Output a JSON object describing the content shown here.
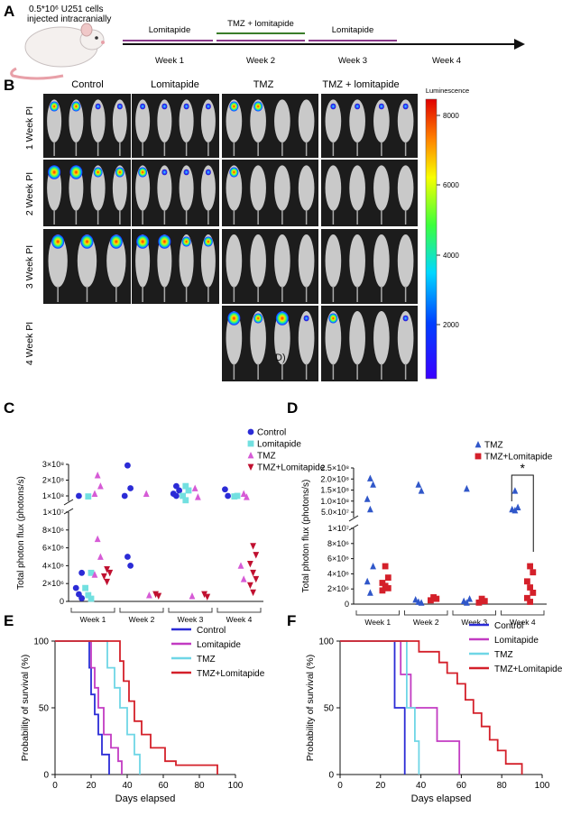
{
  "panel_letters": {
    "a": "A",
    "b": "B",
    "c": "C",
    "d": "D",
    "e": "E",
    "f": "F"
  },
  "panel_a": {
    "mouse_caption_line1": "0.5*10⁶ U251 cells",
    "mouse_caption_line2": "injected intracranially",
    "segment_labels": [
      "Lomitapide",
      "TMZ + lomitapide",
      "Lomitapide"
    ],
    "week_labels": [
      "Week 1",
      "Week 2",
      "Week 3",
      "Week 4"
    ],
    "colors": {
      "lomitapide_bar": "#8b3a8b",
      "tmz_lomitapide_bar": "#3a7d2a"
    }
  },
  "panel_b": {
    "column_titles": [
      "Control",
      "Lomitapide",
      "TMZ",
      "TMZ + lomitapide"
    ],
    "row_labels": [
      "1 Week PI",
      "2 Week PI",
      "3 Week PI",
      "4 Week PI"
    ],
    "colorbar_title": "Luminescence",
    "colorbar_ticks": [
      "8000",
      "6000",
      "4000",
      "2000"
    ],
    "image_overlay_text": "D)"
  },
  "chart_data": [
    {
      "panel": "C",
      "type": "scatter",
      "ylabel": "Total photon flux (photons/s)",
      "categories": [
        "Week 1",
        "Week 2",
        "Week 3",
        "Week 4"
      ],
      "upper_axis": {
        "ticks": [
          "3×10⁸",
          "2×10⁸",
          "1×10⁸"
        ],
        "ylim": [
          10000000,
          350000000
        ]
      },
      "lower_axis": {
        "ticks": [
          "1×10⁷",
          "8×10⁶",
          "6×10⁶",
          "4×10⁶",
          "2×10⁶",
          "0"
        ],
        "ylim": [
          0,
          10000000
        ]
      },
      "series": [
        {
          "name": "Control",
          "marker": "circle",
          "color": "#2b2bd6",
          "points": [
            [
              1,
              60000000
            ],
            [
              1,
              3200000
            ],
            [
              1,
              1500000
            ],
            [
              1,
              800000
            ],
            [
              1,
              350000
            ],
            [
              2,
              340000000
            ],
            [
              2,
              130000000
            ],
            [
              2,
              60000000
            ],
            [
              2,
              5000000
            ],
            [
              2,
              4000000
            ],
            [
              3,
              150000000
            ],
            [
              3,
              110000000
            ],
            [
              3,
              80000000
            ],
            [
              3,
              60000000
            ],
            [
              4,
              120000000
            ],
            [
              4,
              60000000
            ]
          ]
        },
        {
          "name": "Lomitapide",
          "marker": "square",
          "color": "#72e0e0",
          "points": [
            [
              1,
              55000000
            ],
            [
              1,
              3200000
            ],
            [
              1,
              1500000
            ],
            [
              1,
              700000
            ],
            [
              1,
              300000
            ],
            [
              3,
              150000000
            ],
            [
              3,
              110000000
            ],
            [
              3,
              60000000
            ],
            [
              3,
              20000000
            ],
            [
              4,
              55000000
            ],
            [
              4,
              60000000
            ]
          ]
        },
        {
          "name": "TMZ",
          "marker": "triangle",
          "color": "#d65bd6",
          "points": [
            [
              1,
              250000000
            ],
            [
              1,
              150000000
            ],
            [
              1,
              80000000
            ],
            [
              1,
              7000000
            ],
            [
              1,
              5000000
            ],
            [
              1,
              3000000
            ],
            [
              2,
              80000000
            ],
            [
              2,
              700000
            ],
            [
              3,
              130000000
            ],
            [
              3,
              50000000
            ],
            [
              3,
              600000
            ],
            [
              4,
              80000000
            ],
            [
              4,
              50000000
            ],
            [
              4,
              4000000
            ],
            [
              4,
              2500000
            ]
          ]
        },
        {
          "name": "TMZ+Lomitapide",
          "marker": "triangle-down",
          "color": "#c01030",
          "points": [
            [
              1,
              3600000
            ],
            [
              1,
              3200000
            ],
            [
              1,
              2800000
            ],
            [
              1,
              2200000
            ],
            [
              2,
              800000
            ],
            [
              2,
              600000
            ],
            [
              3,
              800000
            ],
            [
              3,
              500000
            ],
            [
              4,
              6200000
            ],
            [
              4,
              5200000
            ],
            [
              4,
              4200000
            ],
            [
              4,
              3200000
            ],
            [
              4,
              2500000
            ],
            [
              4,
              1800000
            ],
            [
              4,
              1000000
            ]
          ]
        }
      ]
    },
    {
      "panel": "D",
      "type": "scatter",
      "ylabel": "Total photon flux (photons/s)",
      "categories": [
        "Week 1",
        "Week 2",
        "Week 3",
        "Week 4"
      ],
      "upper_axis": {
        "ticks": [
          "2.5×10⁸",
          "2.0×10⁸",
          "1.5×10⁸",
          "1.0×10⁸",
          "5.0×10⁷"
        ],
        "ylim": [
          10000000,
          250000000
        ]
      },
      "lower_axis": {
        "ticks": [
          "1×10⁷",
          "8×10⁶",
          "6×10⁶",
          "4×10⁶",
          "2×10⁶",
          "0"
        ],
        "ylim": [
          0,
          10000000
        ]
      },
      "significance_label": "*",
      "series": [
        {
          "name": "TMZ",
          "marker": "triangle",
          "color": "#3057c9",
          "points": [
            [
              1,
              200000000
            ],
            [
              1,
              170000000
            ],
            [
              1,
              100000000
            ],
            [
              1,
              50000000
            ],
            [
              1,
              5000000
            ],
            [
              1,
              3000000
            ],
            [
              1,
              1500000
            ],
            [
              2,
              170000000
            ],
            [
              2,
              140000000
            ],
            [
              2,
              600000
            ],
            [
              2,
              300000
            ],
            [
              2,
              200000
            ],
            [
              3,
              150000000
            ],
            [
              3,
              700000
            ],
            [
              3,
              400000
            ],
            [
              3,
              200000
            ],
            [
              4,
              140000000
            ],
            [
              4,
              60000000
            ],
            [
              4,
              50000000
            ],
            [
              4,
              45000000
            ]
          ]
        },
        {
          "name": "TMZ+Lomitapide",
          "marker": "square",
          "color": "#d4202a",
          "points": [
            [
              1,
              5000000
            ],
            [
              1,
              3500000
            ],
            [
              1,
              2800000
            ],
            [
              1,
              2400000
            ],
            [
              1,
              2100000
            ],
            [
              1,
              1800000
            ],
            [
              2,
              900000
            ],
            [
              2,
              700000
            ],
            [
              2,
              500000
            ],
            [
              3,
              700000
            ],
            [
              3,
              400000
            ],
            [
              3,
              200000
            ],
            [
              4,
              5000000
            ],
            [
              4,
              4200000
            ],
            [
              4,
              3000000
            ],
            [
              4,
              2200000
            ],
            [
              4,
              1500000
            ],
            [
              4,
              800000
            ],
            [
              4,
              300000
            ]
          ]
        }
      ]
    },
    {
      "panel": "E",
      "type": "line",
      "ylabel": "Probability of survival (%)",
      "xlabel": "Days elapsed",
      "xlim": [
        0,
        100
      ],
      "ylim": [
        0,
        100
      ],
      "xticks": [
        "0",
        "20",
        "40",
        "60",
        "80",
        "100"
      ],
      "yticks": [
        "0",
        "50",
        "100"
      ],
      "series": [
        {
          "name": "Control",
          "color": "#2b2bd6",
          "steps": [
            [
              0,
              100
            ],
            [
              19,
              100
            ],
            [
              19,
              80
            ],
            [
              20,
              80
            ],
            [
              20,
              60
            ],
            [
              22,
              60
            ],
            [
              22,
              45
            ],
            [
              24,
              45
            ],
            [
              24,
              30
            ],
            [
              26,
              30
            ],
            [
              26,
              15
            ],
            [
              30,
              15
            ],
            [
              30,
              0
            ]
          ]
        },
        {
          "name": "Lomitapide",
          "color": "#c23bc2",
          "steps": [
            [
              0,
              100
            ],
            [
              20,
              100
            ],
            [
              20,
              80
            ],
            [
              22,
              80
            ],
            [
              22,
              65
            ],
            [
              24,
              65
            ],
            [
              24,
              50
            ],
            [
              27,
              50
            ],
            [
              27,
              30
            ],
            [
              31,
              30
            ],
            [
              31,
              20
            ],
            [
              35,
              20
            ],
            [
              35,
              10
            ],
            [
              37,
              10
            ],
            [
              37,
              0
            ]
          ]
        },
        {
          "name": "TMZ",
          "color": "#6fd6e6",
          "steps": [
            [
              0,
              100
            ],
            [
              29,
              100
            ],
            [
              29,
              80
            ],
            [
              33,
              80
            ],
            [
              33,
              65
            ],
            [
              36,
              65
            ],
            [
              36,
              50
            ],
            [
              40,
              50
            ],
            [
              40,
              30
            ],
            [
              44,
              30
            ],
            [
              44,
              15
            ],
            [
              47,
              15
            ],
            [
              47,
              0
            ]
          ]
        },
        {
          "name": "TMZ+Lomitapide",
          "color": "#d4202a",
          "steps": [
            [
              0,
              100
            ],
            [
              36,
              100
            ],
            [
              36,
              85
            ],
            [
              38,
              85
            ],
            [
              38,
              70
            ],
            [
              41,
              70
            ],
            [
              41,
              55
            ],
            [
              44,
              55
            ],
            [
              44,
              40
            ],
            [
              48,
              40
            ],
            [
              48,
              30
            ],
            [
              53,
              30
            ],
            [
              53,
              20
            ],
            [
              61,
              20
            ],
            [
              61,
              10
            ],
            [
              67,
              10
            ],
            [
              67,
              7
            ],
            [
              90,
              7
            ],
            [
              90,
              0
            ]
          ]
        }
      ]
    },
    {
      "panel": "F",
      "type": "line",
      "ylabel": "Probability of survival (%)",
      "xlabel": "Days elapsed",
      "xlim": [
        0,
        100
      ],
      "ylim": [
        0,
        100
      ],
      "xticks": [
        "0",
        "20",
        "40",
        "60",
        "80",
        "100"
      ],
      "yticks": [
        "0",
        "50",
        "100"
      ],
      "series": [
        {
          "name": "Control",
          "color": "#2b2bd6",
          "steps": [
            [
              0,
              100
            ],
            [
              27,
              100
            ],
            [
              27,
              50
            ],
            [
              32,
              50
            ],
            [
              32,
              0
            ]
          ]
        },
        {
          "name": "Lomitapide",
          "color": "#c23bc2",
          "steps": [
            [
              0,
              100
            ],
            [
              30,
              100
            ],
            [
              30,
              75
            ],
            [
              35,
              75
            ],
            [
              35,
              50
            ],
            [
              48,
              50
            ],
            [
              48,
              25
            ],
            [
              59,
              25
            ],
            [
              59,
              0
            ]
          ]
        },
        {
          "name": "TMZ",
          "color": "#6fd6e6",
          "steps": [
            [
              0,
              100
            ],
            [
              33,
              100
            ],
            [
              33,
              50
            ],
            [
              37,
              50
            ],
            [
              37,
              25
            ],
            [
              39,
              25
            ],
            [
              39,
              0
            ]
          ]
        },
        {
          "name": "TMZ+Lomitapide",
          "color": "#d4202a",
          "steps": [
            [
              0,
              100
            ],
            [
              39,
              100
            ],
            [
              39,
              92
            ],
            [
              49,
              92
            ],
            [
              49,
              84
            ],
            [
              53,
              84
            ],
            [
              53,
              76
            ],
            [
              58,
              76
            ],
            [
              58,
              68
            ],
            [
              62,
              68
            ],
            [
              62,
              56
            ],
            [
              66,
              56
            ],
            [
              66,
              46
            ],
            [
              70,
              46
            ],
            [
              70,
              36
            ],
            [
              74,
              36
            ],
            [
              74,
              26
            ],
            [
              78,
              26
            ],
            [
              78,
              18
            ],
            [
              82,
              18
            ],
            [
              82,
              8
            ],
            [
              90,
              8
            ],
            [
              90,
              0
            ]
          ]
        }
      ]
    }
  ]
}
